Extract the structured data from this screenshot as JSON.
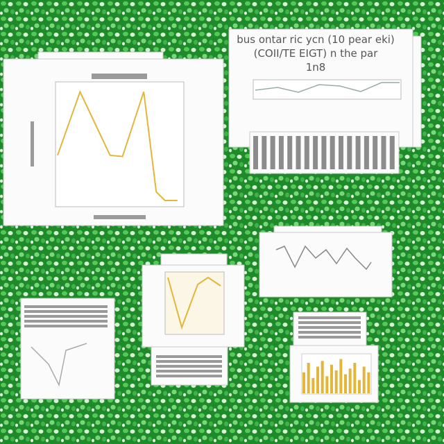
{
  "header": {
    "title_lines": [
      "bus ontar ric ycn (10 pear eki)",
      "(COII/TE EIGT) n the par",
      "1n8"
    ]
  },
  "main_chart": {
    "type": "line",
    "color": "#e3b63a",
    "x": [
      0,
      1.8,
      4.2,
      5.2,
      6.9,
      7.9,
      8.6,
      9.6
    ],
    "values": [
      41,
      93,
      41,
      40,
      93,
      11,
      4,
      4
    ],
    "xlim": [
      0,
      10
    ],
    "ylim": [
      0,
      100
    ]
  },
  "bar_chart": {
    "type": "bar",
    "color": "#e3b63a",
    "values": [
      55,
      80,
      40,
      70,
      85,
      45,
      75,
      60,
      90,
      50,
      65,
      80,
      35,
      70,
      55
    ],
    "ylim": [
      0,
      100
    ]
  }
}
